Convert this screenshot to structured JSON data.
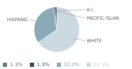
{
  "chart_data": {
    "type": "pie",
    "categories": [
      "WHITE",
      "HISPANIC",
      "PACIFIC ISLAN",
      "A.I."
    ],
    "values": [
      65.3,
      32.0,
      1.3,
      1.3
    ],
    "value_labels": [
      "65.3%",
      "32.0%",
      "1.3%",
      "1.3%"
    ],
    "colors": [
      "#cdd9e0",
      "#8aaab8",
      "#5c8090",
      "#2d4f62"
    ],
    "legend": "bottom"
  }
}
